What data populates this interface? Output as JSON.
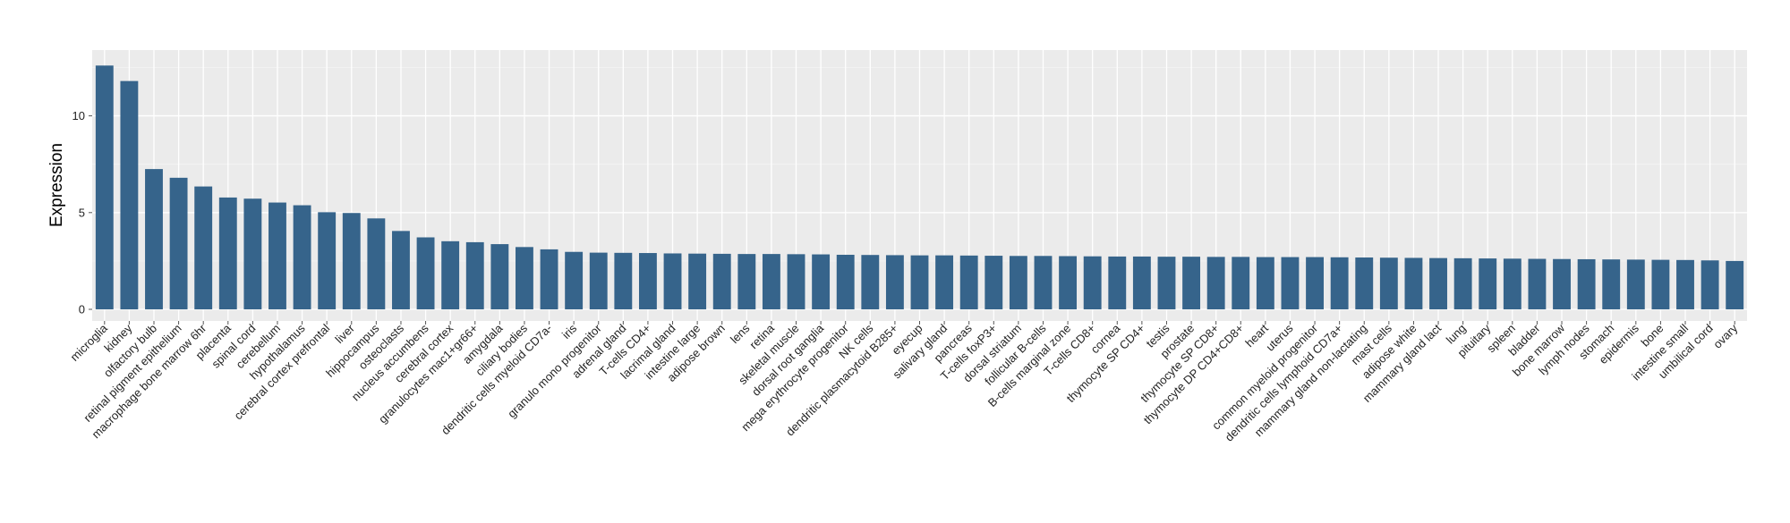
{
  "chart_data": {
    "type": "bar",
    "xlabel": "",
    "ylabel": "Expression",
    "ylim": [
      -0.6,
      13.4
    ],
    "yticks": [
      0,
      5,
      10
    ],
    "grid": true,
    "legend": "none",
    "bar_color": "#36648b",
    "panel_color": "#ebebeb",
    "categories": [
      "microglia",
      "kidney",
      "olfactory bulb",
      "retinal pigment epithelium",
      "macrophage bone marrow 6hr",
      "placenta",
      "spinal cord",
      "cerebellum",
      "hypothalamus",
      "cerebral cortex prefrontal",
      "liver",
      "hippocampus",
      "osteoclasts",
      "nucleus accumbens",
      "cerebral cortex",
      "granulocytes mac1+gr66+",
      "amygdala",
      "ciliary bodies",
      "dendritic cells myeloid CD7a-",
      "iris",
      "granulo mono progenitor",
      "adrenal gland",
      "T-cells CD4+",
      "lacrimal gland",
      "intestine large",
      "adipose brown",
      "lens",
      "retina",
      "skeletal muscle",
      "dorsal root ganglia",
      "mega erythrocyte progenitor",
      "NK cells",
      "dendritic plasmacytoid B285+",
      "eyecup",
      "salivary gland",
      "pancreas",
      "T-cells foxP3+",
      "dorsal striatum",
      "follicular B-cells",
      "B-cells marginal zone",
      "T-cells CD8+",
      "cornea",
      "thymocyte SP CD4+",
      "testis",
      "prostate",
      "thymocyte SP CD8+",
      "thymocyte DP CD4+CD8+",
      "heart",
      "uterus",
      "common myeloid progenitor",
      "dendritic cells lymphoid CD7a+",
      "mammary gland non-lactating",
      "mast cells",
      "adipose white",
      "mammary gland  lact",
      "lung",
      "pituitary",
      "spleen",
      "bladder",
      "bone marrow",
      "lymph nodes",
      "stomach",
      "epidermis",
      "bone",
      "intestine small",
      "umbilical cord",
      "ovary"
    ],
    "values": [
      12.6,
      11.8,
      7.25,
      6.8,
      6.35,
      5.78,
      5.72,
      5.52,
      5.38,
      5.02,
      4.98,
      4.7,
      4.05,
      3.72,
      3.52,
      3.47,
      3.37,
      3.22,
      3.1,
      2.97,
      2.93,
      2.92,
      2.91,
      2.89,
      2.88,
      2.87,
      2.86,
      2.86,
      2.85,
      2.84,
      2.82,
      2.81,
      2.8,
      2.79,
      2.79,
      2.78,
      2.77,
      2.76,
      2.76,
      2.75,
      2.74,
      2.73,
      2.73,
      2.72,
      2.72,
      2.71,
      2.71,
      2.7,
      2.7,
      2.7,
      2.69,
      2.68,
      2.67,
      2.66,
      2.65,
      2.64,
      2.63,
      2.62,
      2.61,
      2.6,
      2.59,
      2.58,
      2.57,
      2.56,
      2.55,
      2.53,
      2.5
    ]
  }
}
